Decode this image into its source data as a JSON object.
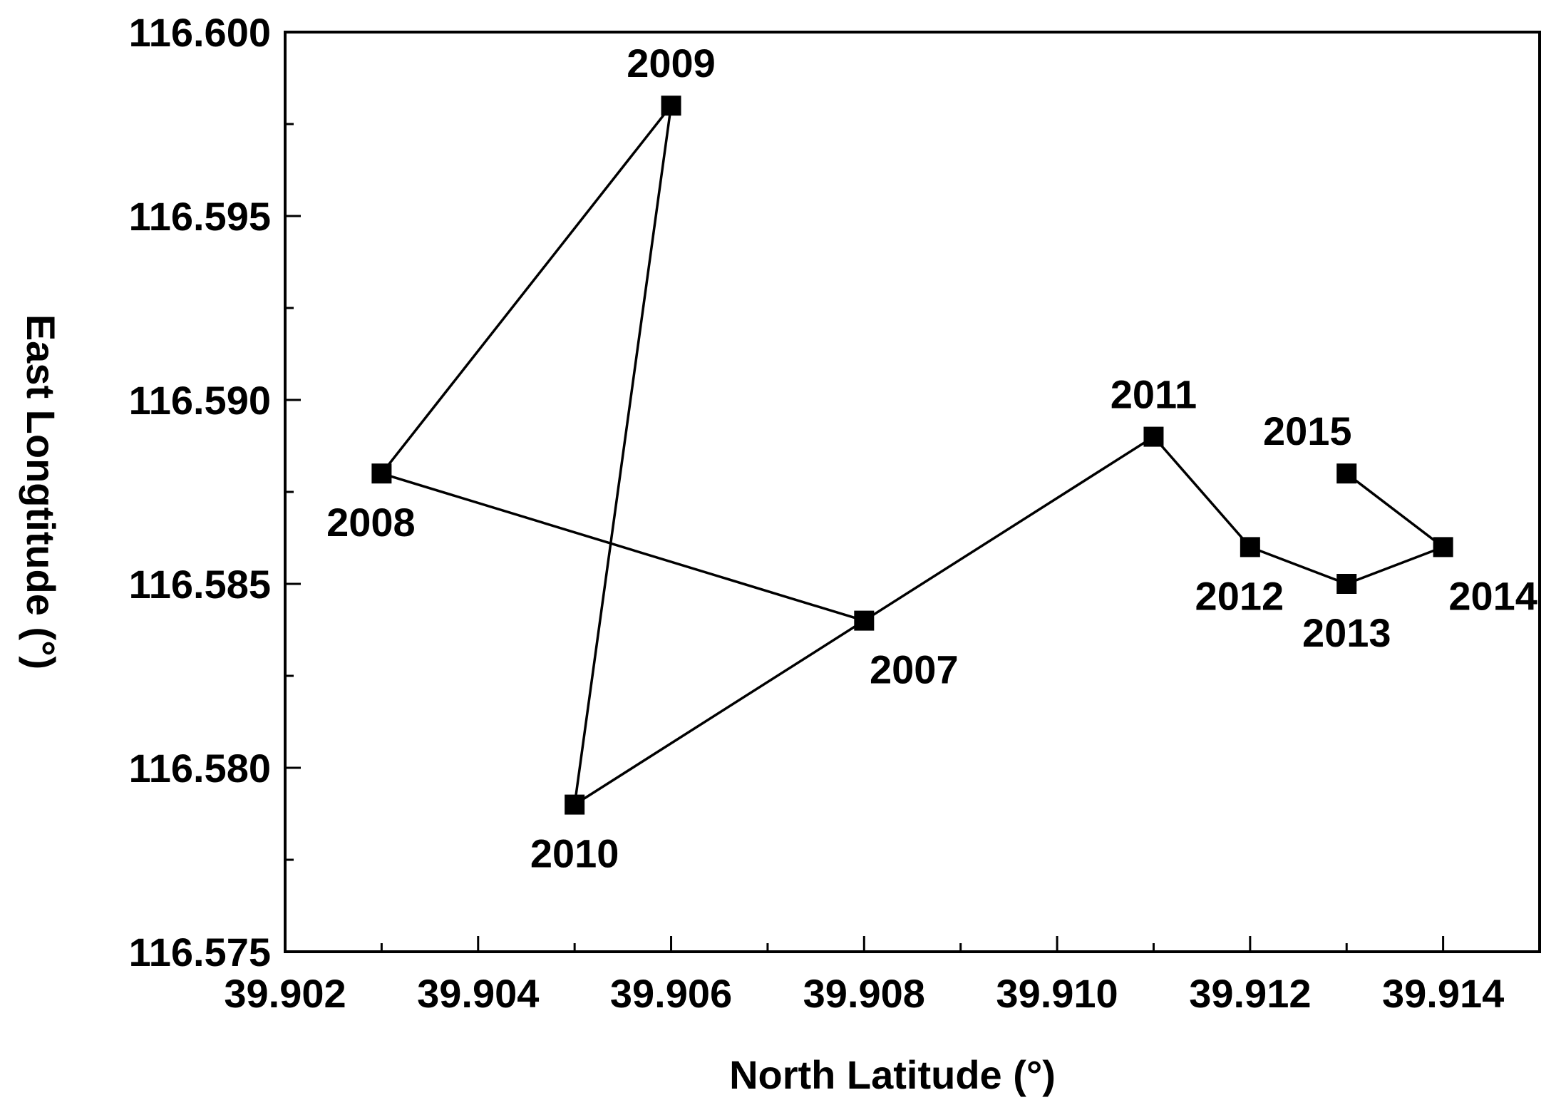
{
  "chart_data": {
    "type": "line",
    "xlabel": "North Latitude (°)",
    "ylabel": "East Longtitude (°)",
    "xlim": [
      39.902,
      39.915
    ],
    "ylim": [
      116.575,
      116.6
    ],
    "xticks": [
      39.902,
      39.904,
      39.906,
      39.908,
      39.91,
      39.912,
      39.914
    ],
    "xtick_labels": [
      "39.902",
      "39.904",
      "39.906",
      "39.908",
      "39.910",
      "39.912",
      "39.914"
    ],
    "yticks": [
      116.575,
      116.58,
      116.585,
      116.59,
      116.595,
      116.6
    ],
    "ytick_labels": [
      "116.575",
      "116.580",
      "116.585",
      "116.590",
      "116.595",
      "116.600"
    ],
    "grid": false,
    "marker": "square",
    "color": "#000000",
    "series": [
      {
        "points": [
          {
            "label": "2007",
            "x": 39.908,
            "y": 116.584,
            "label_pos": "below-right"
          },
          {
            "label": "2008",
            "x": 39.903,
            "y": 116.588,
            "label_pos": "below-left"
          },
          {
            "label": "2009",
            "x": 39.906,
            "y": 116.598,
            "label_pos": "above"
          },
          {
            "label": "2010",
            "x": 39.905,
            "y": 116.579,
            "label_pos": "below"
          },
          {
            "label": "2011",
            "x": 39.911,
            "y": 116.589,
            "label_pos": "above"
          },
          {
            "label": "2012",
            "x": 39.912,
            "y": 116.586,
            "label_pos": "below-left"
          },
          {
            "label": "2013",
            "x": 39.913,
            "y": 116.585,
            "label_pos": "below"
          },
          {
            "label": "2014",
            "x": 39.914,
            "y": 116.586,
            "label_pos": "below-right"
          },
          {
            "label": "2015",
            "x": 39.913,
            "y": 116.588,
            "label_pos": "above-left"
          }
        ]
      }
    ]
  }
}
